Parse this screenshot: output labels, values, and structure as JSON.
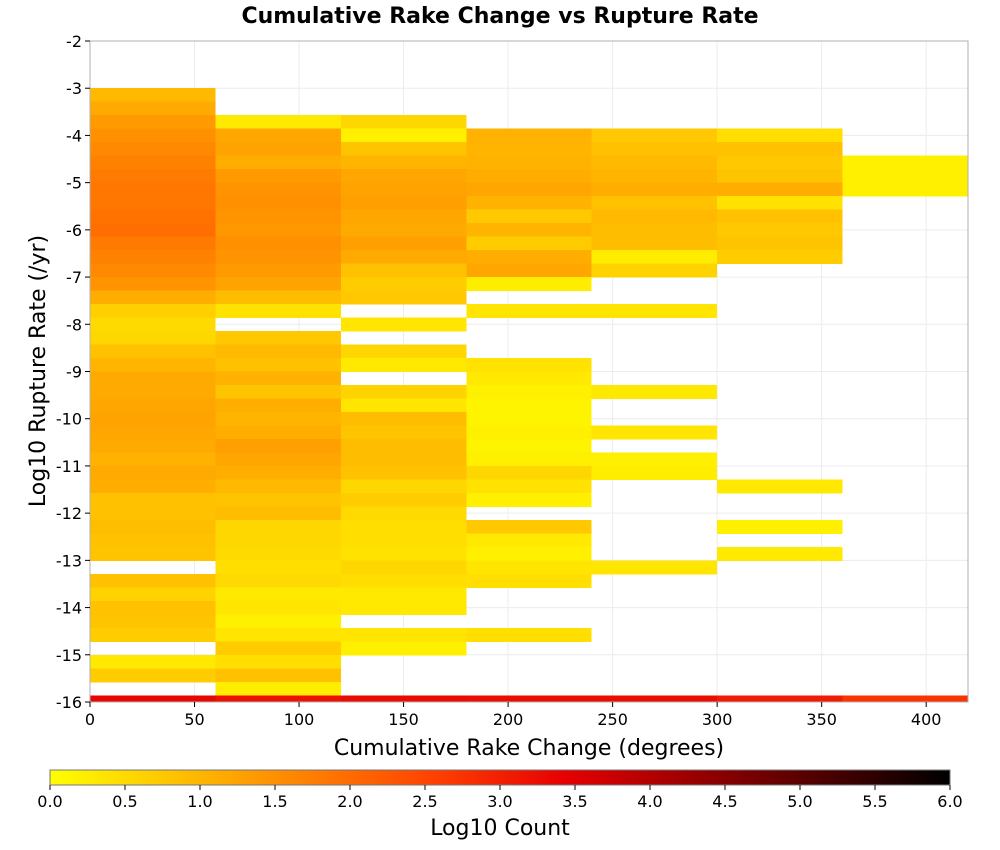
{
  "chart_data": {
    "type": "heatmap",
    "title": "Cumulative Rake Change vs Rupture Rate",
    "xlabel": "Cumulative Rake Change (degrees)",
    "ylabel": "Log10 Rupture Rate (/yr)",
    "xlim": [
      0,
      420
    ],
    "ylim": [
      -16,
      -2
    ],
    "x_ticks": [
      0,
      50,
      100,
      150,
      200,
      250,
      300,
      350,
      400
    ],
    "x_tick_labels": [
      "0",
      "50",
      "100",
      "150",
      "200",
      "250",
      "300",
      "350",
      "400"
    ],
    "y_ticks": [
      -2,
      -3,
      -4,
      -5,
      -6,
      -7,
      -8,
      -9,
      -10,
      -11,
      -12,
      -13,
      -14,
      -15,
      -16
    ],
    "y_tick_labels": [
      "-2",
      "-3",
      "-4",
      "-5",
      "-6",
      "-7",
      "-8",
      "-9",
      "-10",
      "-11",
      "-12",
      "-13",
      "-14",
      "-15",
      "-16"
    ],
    "grid": true,
    "x_bin_width": 60,
    "y_bin_height": 0.286,
    "colorbar": {
      "label": "Log10 Count",
      "range": [
        0.0,
        6.0
      ],
      "ticks": [
        0.0,
        0.5,
        1.0,
        1.5,
        2.0,
        2.5,
        3.0,
        3.5,
        4.0,
        4.5,
        5.0,
        5.5,
        6.0
      ],
      "tick_labels": [
        "0.0",
        "0.5",
        "1.0",
        "1.5",
        "2.0",
        "2.5",
        "3.0",
        "3.5",
        "4.0",
        "4.5",
        "5.0",
        "5.5",
        "6.0"
      ],
      "colormap": [
        "#ffff00",
        "#ffc000",
        "#ff8000",
        "#ff4000",
        "#e60000",
        "#990000",
        "#4d0000",
        "#000000"
      ]
    },
    "columns": [
      {
        "x_start": 0,
        "x_end": 60,
        "cells": [
          [
            -3.286,
            -3.0,
            0.95
          ],
          [
            -3.571,
            -3.286,
            1.15
          ],
          [
            -3.857,
            -3.571,
            1.35
          ],
          [
            -4.143,
            -3.857,
            1.5
          ],
          [
            -4.429,
            -4.143,
            1.6
          ],
          [
            -4.714,
            -4.429,
            1.7
          ],
          [
            -5.0,
            -4.714,
            1.8
          ],
          [
            -5.286,
            -5.0,
            1.85
          ],
          [
            -5.571,
            -5.286,
            1.85
          ],
          [
            -5.857,
            -5.571,
            1.9
          ],
          [
            -6.143,
            -5.857,
            1.95
          ],
          [
            -6.429,
            -6.143,
            1.8
          ],
          [
            -6.714,
            -6.429,
            1.7
          ],
          [
            -7.0,
            -6.714,
            1.6
          ],
          [
            -7.286,
            -7.0,
            1.45
          ],
          [
            -7.571,
            -7.286,
            1.1
          ],
          [
            -7.857,
            -7.571,
            0.65
          ],
          [
            -8.143,
            -7.857,
            0.5
          ],
          [
            -8.429,
            -8.143,
            0.55
          ],
          [
            -8.714,
            -8.429,
            0.85
          ],
          [
            -9.0,
            -8.714,
            1.0
          ],
          [
            -9.286,
            -9.0,
            1.15
          ],
          [
            -9.571,
            -9.286,
            1.15
          ],
          [
            -9.857,
            -9.571,
            1.2
          ],
          [
            -10.143,
            -9.857,
            1.25
          ],
          [
            -10.429,
            -10.143,
            1.2
          ],
          [
            -10.714,
            -10.429,
            1.15
          ],
          [
            -11.0,
            -10.714,
            1.05
          ],
          [
            -11.286,
            -11.0,
            1.15
          ],
          [
            -11.571,
            -11.286,
            1.1
          ],
          [
            -11.857,
            -11.571,
            0.85
          ],
          [
            -12.143,
            -11.857,
            0.85
          ],
          [
            -12.429,
            -12.143,
            0.9
          ],
          [
            -12.714,
            -12.429,
            0.85
          ],
          [
            -13.0,
            -12.714,
            0.8
          ],
          [
            -13.571,
            -13.286,
            0.85
          ],
          [
            -13.857,
            -13.571,
            0.6
          ],
          [
            -14.143,
            -13.857,
            0.85
          ],
          [
            -14.429,
            -14.143,
            0.8
          ],
          [
            -14.714,
            -14.429,
            0.7
          ],
          [
            -15.286,
            -15.0,
            0.3
          ],
          [
            -15.571,
            -15.286,
            0.7
          ],
          [
            -16.0,
            -15.857,
            3.35
          ]
        ]
      },
      {
        "x_start": 60,
        "x_end": 120,
        "cells": [
          [
            -3.857,
            -3.571,
            0.3
          ],
          [
            -4.143,
            -3.857,
            1.2
          ],
          [
            -4.429,
            -4.143,
            1.25
          ],
          [
            -4.714,
            -4.429,
            1.1
          ],
          [
            -5.0,
            -4.714,
            1.35
          ],
          [
            -5.286,
            -5.0,
            1.45
          ],
          [
            -5.571,
            -5.286,
            1.5
          ],
          [
            -5.857,
            -5.571,
            1.45
          ],
          [
            -6.143,
            -5.857,
            1.4
          ],
          [
            -6.429,
            -6.143,
            1.5
          ],
          [
            -6.714,
            -6.429,
            1.45
          ],
          [
            -7.0,
            -6.714,
            1.35
          ],
          [
            -7.286,
            -7.0,
            1.25
          ],
          [
            -7.571,
            -7.286,
            0.9
          ],
          [
            -7.857,
            -7.571,
            0.4
          ],
          [
            -8.429,
            -8.143,
            0.75
          ],
          [
            -8.714,
            -8.429,
            0.95
          ],
          [
            -9.0,
            -8.714,
            0.85
          ],
          [
            -9.286,
            -9.0,
            1.05
          ],
          [
            -9.571,
            -9.286,
            0.8
          ],
          [
            -9.857,
            -9.571,
            1.1
          ],
          [
            -10.143,
            -9.857,
            1.0
          ],
          [
            -10.429,
            -10.143,
            1.1
          ],
          [
            -10.714,
            -10.429,
            1.3
          ],
          [
            -11.0,
            -10.714,
            1.2
          ],
          [
            -11.286,
            -11.0,
            1.1
          ],
          [
            -11.571,
            -11.286,
            0.95
          ],
          [
            -11.857,
            -11.571,
            0.8
          ],
          [
            -12.143,
            -11.857,
            0.9
          ],
          [
            -12.429,
            -12.143,
            0.55
          ],
          [
            -12.714,
            -12.429,
            0.55
          ],
          [
            -13.0,
            -12.714,
            0.5
          ],
          [
            -13.286,
            -13.0,
            0.45
          ],
          [
            -13.571,
            -13.286,
            0.5
          ],
          [
            -13.857,
            -13.571,
            0.3
          ],
          [
            -14.143,
            -13.857,
            0.35
          ],
          [
            -14.429,
            -14.143,
            0.2
          ],
          [
            -14.714,
            -14.429,
            0.35
          ],
          [
            -15.0,
            -14.714,
            0.7
          ],
          [
            -15.286,
            -15.0,
            0.45
          ],
          [
            -15.571,
            -15.286,
            0.85
          ],
          [
            -15.857,
            -15.571,
            0.25
          ],
          [
            -16.0,
            -15.857,
            3.2
          ]
        ]
      },
      {
        "x_start": 120,
        "x_end": 180,
        "cells": [
          [
            -3.857,
            -3.571,
            0.55
          ],
          [
            -4.143,
            -3.857,
            0.2
          ],
          [
            -4.429,
            -4.143,
            0.8
          ],
          [
            -4.714,
            -4.429,
            1.0
          ],
          [
            -5.0,
            -4.714,
            1.2
          ],
          [
            -5.286,
            -5.0,
            1.25
          ],
          [
            -5.571,
            -5.286,
            1.3
          ],
          [
            -5.857,
            -5.571,
            1.2
          ],
          [
            -6.143,
            -5.857,
            1.15
          ],
          [
            -6.429,
            -6.143,
            1.3
          ],
          [
            -6.714,
            -6.429,
            1.15
          ],
          [
            -7.0,
            -6.714,
            0.85
          ],
          [
            -7.286,
            -7.0,
            0.7
          ],
          [
            -7.571,
            -7.286,
            0.75
          ],
          [
            -8.143,
            -7.857,
            0.35
          ],
          [
            -8.714,
            -8.429,
            0.55
          ],
          [
            -9.0,
            -8.714,
            0.3
          ],
          [
            -9.571,
            -9.286,
            0.6
          ],
          [
            -9.857,
            -9.571,
            0.35
          ],
          [
            -10.143,
            -9.857,
            0.9
          ],
          [
            -10.429,
            -10.143,
            0.8
          ],
          [
            -10.714,
            -10.429,
            0.9
          ],
          [
            -11.0,
            -10.714,
            0.9
          ],
          [
            -11.286,
            -11.0,
            0.85
          ],
          [
            -11.571,
            -11.286,
            0.55
          ],
          [
            -11.857,
            -11.571,
            0.7
          ],
          [
            -12.143,
            -11.857,
            0.5
          ],
          [
            -12.429,
            -12.143,
            0.45
          ],
          [
            -12.714,
            -12.429,
            0.45
          ],
          [
            -13.0,
            -12.714,
            0.4
          ],
          [
            -13.286,
            -13.0,
            0.55
          ],
          [
            -13.571,
            -13.286,
            0.45
          ],
          [
            -13.857,
            -13.571,
            0.3
          ],
          [
            -14.143,
            -13.857,
            0.3
          ],
          [
            -14.714,
            -14.429,
            0.35
          ],
          [
            -15.0,
            -14.714,
            0.2
          ],
          [
            -16.0,
            -15.857,
            3.3
          ]
        ]
      },
      {
        "x_start": 180,
        "x_end": 240,
        "cells": [
          [
            -4.143,
            -3.857,
            1.05
          ],
          [
            -4.429,
            -4.143,
            1.0
          ],
          [
            -4.714,
            -4.429,
            1.05
          ],
          [
            -5.0,
            -4.714,
            1.1
          ],
          [
            -5.286,
            -5.0,
            1.2
          ],
          [
            -5.571,
            -5.286,
            1.05
          ],
          [
            -5.857,
            -5.571,
            0.75
          ],
          [
            -6.143,
            -5.857,
            1.0
          ],
          [
            -6.429,
            -6.143,
            0.7
          ],
          [
            -6.714,
            -6.429,
            1.1
          ],
          [
            -7.0,
            -6.714,
            1.2
          ],
          [
            -7.286,
            -7.0,
            0.25
          ],
          [
            -7.857,
            -7.571,
            0.35
          ],
          [
            -9.0,
            -8.714,
            0.4
          ],
          [
            -9.286,
            -9.0,
            0.3
          ],
          [
            -9.571,
            -9.286,
            0.2
          ],
          [
            -9.857,
            -9.571,
            0.15
          ],
          [
            -10.143,
            -9.857,
            0.15
          ],
          [
            -10.429,
            -10.143,
            0.2
          ],
          [
            -10.714,
            -10.429,
            0.15
          ],
          [
            -11.0,
            -10.714,
            0.2
          ],
          [
            -11.286,
            -11.0,
            0.55
          ],
          [
            -11.571,
            -11.286,
            0.4
          ],
          [
            -11.857,
            -11.571,
            0.2
          ],
          [
            -12.429,
            -12.143,
            0.75
          ],
          [
            -12.714,
            -12.429,
            0.3
          ],
          [
            -13.0,
            -12.714,
            0.2
          ],
          [
            -13.286,
            -13.0,
            0.35
          ],
          [
            -13.571,
            -13.286,
            0.45
          ],
          [
            -14.714,
            -14.429,
            0.45
          ],
          [
            -16.0,
            -15.857,
            3.25
          ]
        ]
      },
      {
        "x_start": 240,
        "x_end": 300,
        "cells": [
          [
            -4.143,
            -3.857,
            0.75
          ],
          [
            -4.429,
            -4.143,
            0.85
          ],
          [
            -4.714,
            -4.429,
            0.95
          ],
          [
            -5.0,
            -4.714,
            1.0
          ],
          [
            -5.286,
            -5.0,
            1.1
          ],
          [
            -5.571,
            -5.286,
            0.85
          ],
          [
            -5.857,
            -5.571,
            0.95
          ],
          [
            -6.143,
            -5.857,
            0.9
          ],
          [
            -6.429,
            -6.143,
            0.9
          ],
          [
            -6.714,
            -6.429,
            0.25
          ],
          [
            -7.0,
            -6.714,
            0.6
          ],
          [
            -7.857,
            -7.571,
            0.35
          ],
          [
            -9.571,
            -9.286,
            0.3
          ],
          [
            -10.429,
            -10.143,
            0.35
          ],
          [
            -11.0,
            -10.714,
            0.2
          ],
          [
            -11.286,
            -11.0,
            0.25
          ],
          [
            -13.286,
            -13.0,
            0.35
          ],
          [
            -16.0,
            -15.857,
            3.25
          ]
        ]
      },
      {
        "x_start": 300,
        "x_end": 360,
        "cells": [
          [
            -4.143,
            -3.857,
            0.45
          ],
          [
            -4.429,
            -4.143,
            0.85
          ],
          [
            -4.714,
            -4.429,
            0.75
          ],
          [
            -5.0,
            -4.714,
            0.8
          ],
          [
            -5.286,
            -5.0,
            1.1
          ],
          [
            -5.571,
            -5.286,
            0.4
          ],
          [
            -5.857,
            -5.571,
            0.85
          ],
          [
            -6.143,
            -5.857,
            0.75
          ],
          [
            -6.429,
            -6.143,
            0.8
          ],
          [
            -6.714,
            -6.429,
            0.7
          ],
          [
            -11.571,
            -11.286,
            0.3
          ],
          [
            -12.429,
            -12.143,
            0.2
          ],
          [
            -13.0,
            -12.714,
            0.3
          ],
          [
            -16.0,
            -15.857,
            3.05
          ]
        ]
      },
      {
        "x_start": 360,
        "x_end": 420,
        "cells": [
          [
            -5.286,
            -4.429,
            0.2
          ],
          [
            -16.0,
            -15.857,
            2.75
          ]
        ]
      }
    ]
  }
}
